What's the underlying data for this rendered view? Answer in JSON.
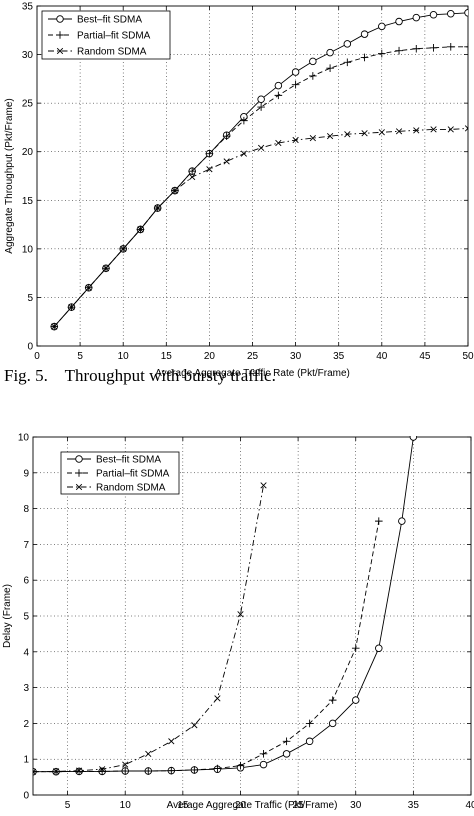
{
  "caption": {
    "label": "Fig. 5.",
    "text": "Throughput with bursty traffic."
  },
  "chart_data": [
    {
      "type": "line",
      "title": "",
      "xlabel": "Average Aggregate Traffic Rate (Pkt/Frame)",
      "ylabel": "Aggregate Throughput (Pkt/Frame)",
      "xlim": [
        0,
        50
      ],
      "ylim": [
        0,
        35
      ],
      "xticks": [
        0,
        5,
        10,
        15,
        20,
        25,
        30,
        35,
        40,
        45,
        50
      ],
      "yticks": [
        0,
        5,
        10,
        15,
        20,
        25,
        30,
        35
      ],
      "grid": true,
      "legend_position": "top-left",
      "series": [
        {
          "name": "Best–fit SDMA",
          "marker": "circle",
          "line": "solid",
          "x": [
            2,
            4,
            6,
            8,
            10,
            12,
            14,
            16,
            18,
            20,
            22,
            24,
            26,
            28,
            30,
            32,
            34,
            36,
            38,
            40,
            42,
            44,
            46,
            48,
            50
          ],
          "y": [
            2,
            4,
            6,
            8,
            10,
            12,
            14.2,
            16,
            18,
            19.8,
            21.7,
            23.6,
            25.4,
            26.8,
            28.2,
            29.3,
            30.2,
            31.1,
            32.1,
            32.9,
            33.4,
            33.8,
            34.1,
            34.2,
            34.3
          ]
        },
        {
          "name": "Partial–fit SDMA",
          "marker": "plus",
          "line": "dashed",
          "x": [
            2,
            4,
            6,
            8,
            10,
            12,
            14,
            16,
            18,
            20,
            22,
            24,
            26,
            28,
            30,
            32,
            34,
            36,
            38,
            40,
            42,
            44,
            46,
            48,
            50
          ],
          "y": [
            2,
            4,
            6,
            8,
            10,
            12,
            14.2,
            16,
            18,
            19.8,
            21.6,
            23.2,
            24.6,
            25.8,
            26.9,
            27.8,
            28.6,
            29.2,
            29.7,
            30.1,
            30.4,
            30.6,
            30.7,
            30.8,
            30.8
          ]
        },
        {
          "name": "Random SDMA",
          "marker": "x",
          "line": "dash-dot",
          "x": [
            2,
            4,
            6,
            8,
            10,
            12,
            14,
            16,
            18,
            20,
            22,
            24,
            26,
            28,
            30,
            32,
            34,
            36,
            38,
            40,
            42,
            44,
            46,
            48,
            50
          ],
          "y": [
            2,
            4,
            6,
            8,
            10,
            12,
            14.2,
            16,
            17.4,
            18.2,
            19,
            19.8,
            20.4,
            20.9,
            21.2,
            21.4,
            21.6,
            21.8,
            21.9,
            22,
            22.1,
            22.2,
            22.3,
            22.3,
            22.4
          ]
        }
      ]
    },
    {
      "type": "line",
      "title": "",
      "xlabel": "Average Aggregate Traffic (Pkt/Frame)",
      "ylabel": "Delay (Frame)",
      "xlim": [
        2,
        40
      ],
      "ylim": [
        0,
        10
      ],
      "xticks": [
        5,
        10,
        15,
        20,
        25,
        30,
        35,
        40
      ],
      "yticks": [
        0,
        1,
        2,
        3,
        4,
        5,
        6,
        7,
        8,
        9,
        10
      ],
      "grid": true,
      "legend_position": "top-left",
      "series": [
        {
          "name": "Best–fit SDMA",
          "marker": "circle",
          "line": "solid",
          "x": [
            2,
            4,
            6,
            8,
            10,
            12,
            14,
            16,
            18,
            20,
            22,
            24,
            26,
            28,
            30,
            32,
            34,
            35
          ],
          "y": [
            0.65,
            0.65,
            0.66,
            0.66,
            0.67,
            0.67,
            0.68,
            0.7,
            0.72,
            0.76,
            0.85,
            1.15,
            1.5,
            2.0,
            2.65,
            4.1,
            7.65,
            10
          ]
        },
        {
          "name": "Partial–fit SDMA",
          "marker": "plus",
          "line": "dashed",
          "x": [
            2,
            4,
            6,
            8,
            10,
            12,
            14,
            16,
            18,
            20,
            22,
            24,
            26,
            28,
            30,
            32
          ],
          "y": [
            0.65,
            0.65,
            0.66,
            0.66,
            0.67,
            0.67,
            0.68,
            0.7,
            0.74,
            0.82,
            1.15,
            1.5,
            2.0,
            2.65,
            4.1,
            7.65
          ]
        },
        {
          "name": "Random SDMA",
          "marker": "x",
          "line": "dash-dot",
          "x": [
            2,
            4,
            6,
            8,
            10,
            12,
            14,
            16,
            18,
            20,
            22
          ],
          "y": [
            0.65,
            0.66,
            0.68,
            0.72,
            0.85,
            1.15,
            1.5,
            1.95,
            2.7,
            5.05,
            8.65
          ]
        }
      ]
    }
  ]
}
